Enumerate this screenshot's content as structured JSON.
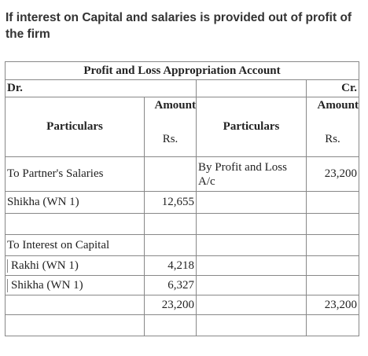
{
  "heading": "If interest on Capital and salaries is provided out of profit of the firm",
  "account": {
    "title": "Profit and Loss Appropriation Account",
    "dr": "Dr.",
    "cr": "Cr.",
    "header": {
      "particulars_left": "Particulars",
      "amount_left": "Amount",
      "unit_left": "Rs.",
      "particulars_right": "Particulars",
      "amount_right": "Amount",
      "unit_right": "Rs."
    },
    "rows": [
      {
        "left": "To Partner's Salaries",
        "left_amt": "",
        "right": "By Profit and Loss A/c",
        "right_amt": "23,200"
      },
      {
        "left": "Shikha (WN 1)",
        "left_amt": "12,655",
        "right": "",
        "right_amt": ""
      },
      {
        "left": "",
        "left_amt": "",
        "right": "",
        "right_amt": ""
      },
      {
        "left": "To Interest on Capital",
        "left_amt": "",
        "right": "",
        "right_amt": ""
      },
      {
        "left": "Rakhi (WN 1)",
        "left_amt": "4,218",
        "right": "",
        "right_amt": ""
      },
      {
        "left": "Shikha (WN 1)",
        "left_amt": "6,327",
        "right": "",
        "right_amt": ""
      },
      {
        "left": "",
        "left_amt": "23,200",
        "right": "",
        "right_amt": "23,200"
      },
      {
        "left": "",
        "left_amt": "",
        "right": "",
        "right_amt": ""
      }
    ]
  }
}
